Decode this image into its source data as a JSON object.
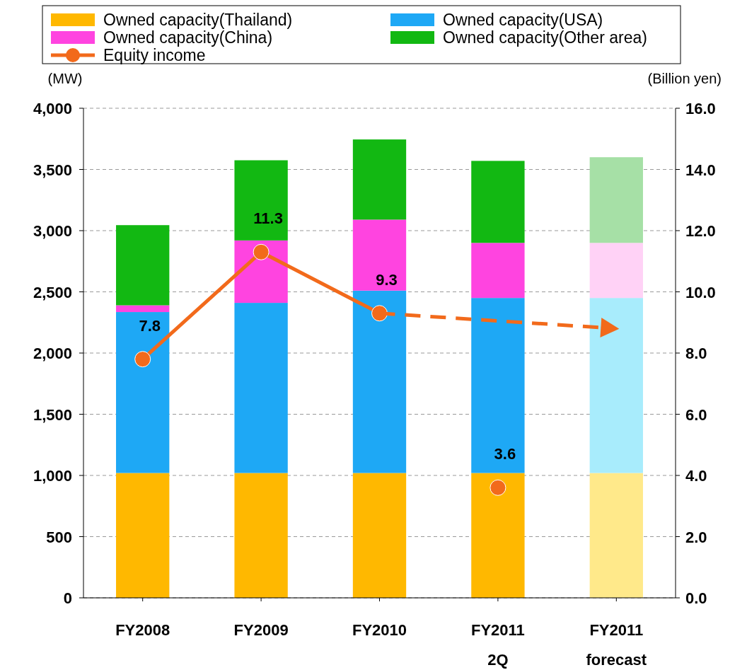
{
  "chart_data": {
    "type": "bar",
    "stacked": true,
    "ylabel": "(MW)",
    "y2label": "(Billion yen)",
    "categories": [
      "FY2008",
      "FY2009",
      "FY2010",
      "FY2011\n2Q",
      "FY2011\nforecast"
    ],
    "ylim": [
      0,
      4000
    ],
    "yticks": [
      {
        "value": 0,
        "label": "0"
      },
      {
        "value": 500,
        "label": "500"
      },
      {
        "value": 1000,
        "label": "1,000"
      },
      {
        "value": 1500,
        "label": "1,500"
      },
      {
        "value": 2000,
        "label": "2,000"
      },
      {
        "value": 2500,
        "label": "2,500"
      },
      {
        "value": 3000,
        "label": "3,000"
      },
      {
        "value": 3500,
        "label": "3,500"
      },
      {
        "value": 4000,
        "label": "4,000"
      }
    ],
    "y2lim": [
      0,
      16
    ],
    "y2ticks": [
      {
        "value": 0,
        "label": "0.0"
      },
      {
        "value": 2,
        "label": "2.0"
      },
      {
        "value": 4,
        "label": "4.0"
      },
      {
        "value": 6,
        "label": "6.0"
      },
      {
        "value": 8,
        "label": "8.0"
      },
      {
        "value": 10,
        "label": "10.0"
      },
      {
        "value": 12,
        "label": "12.0"
      },
      {
        "value": 14,
        "label": "14.0"
      },
      {
        "value": 16,
        "label": "16.0"
      }
    ],
    "grid": "y",
    "legend": "top",
    "series": [
      {
        "name": "Owned capacity(Thailand)",
        "color": "#ffb800",
        "colors": [
          "#ffb800",
          "#ffb800",
          "#ffb800",
          "#ffb800",
          "#ffe98a"
        ],
        "values": [
          1020,
          1020,
          1020,
          1020,
          1020
        ]
      },
      {
        "name": "Owned capacity(USA)",
        "color": "#1ea8f5",
        "colors": [
          "#1ea8f5",
          "#1ea8f5",
          "#1ea8f5",
          "#1ea8f5",
          "#a8ecfc"
        ],
        "values": [
          1315,
          1390,
          1490,
          1430,
          1430
        ]
      },
      {
        "name": "Owned capacity(China)",
        "color": "#ff44e0",
        "colors": [
          "#ff44e0",
          "#ff44e0",
          "#ff44e0",
          "#ff44e0",
          "#ffd2f6"
        ],
        "values": [
          55,
          510,
          580,
          450,
          450
        ]
      },
      {
        "name": "Owned capacity(Other area)",
        "color": "#12b812",
        "colors": [
          "#12b812",
          "#12b812",
          "#12b812",
          "#12b812",
          "#a6e0a6"
        ],
        "values": [
          655,
          655,
          655,
          670,
          700
        ]
      },
      {
        "name": "Equity income",
        "type": "line",
        "axis": "y2",
        "color": "#f26a1b",
        "marker": "circle",
        "line_style": "solid",
        "values": [
          7.8,
          11.3,
          9.3,
          null,
          null
        ],
        "value_labels": [
          "7.8",
          "11.3",
          "9.3",
          null,
          null
        ]
      },
      {
        "type": "line",
        "axis": "y2",
        "color": "#f26a1b",
        "marker": "circle",
        "values": [
          null,
          null,
          null,
          3.6,
          null
        ],
        "value_labels": [
          null,
          null,
          null,
          "3.6",
          null
        ]
      },
      {
        "type": "line",
        "axis": "y2",
        "color": "#f26a1b",
        "line_style": "dashed",
        "values": [
          null,
          null,
          9.3,
          null,
          8.8
        ]
      }
    ]
  }
}
